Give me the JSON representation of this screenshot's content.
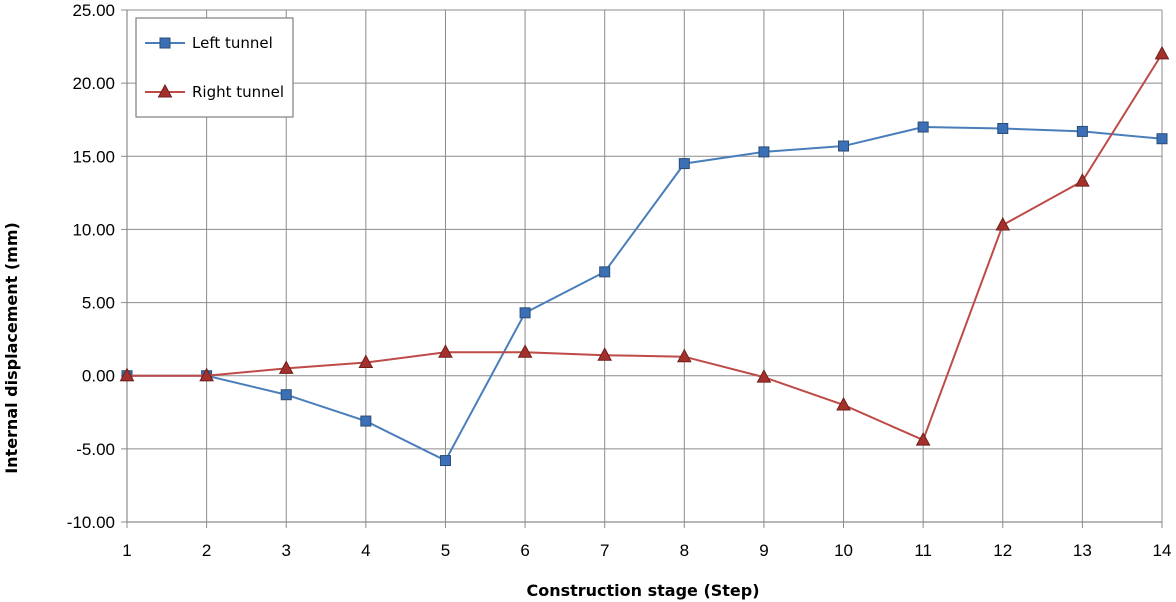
{
  "chart_data": {
    "type": "line",
    "xlabel": "Construction stage (Step)",
    "ylabel": "Internal displacement (mm)",
    "x": [
      1,
      2,
      3,
      4,
      5,
      6,
      7,
      8,
      9,
      10,
      11,
      12,
      13,
      14
    ],
    "ylim": [
      -10,
      25
    ],
    "y_ticks": [
      "-10.00",
      "-5.00",
      "0.00",
      "5.00",
      "10.00",
      "15.00",
      "20.00",
      "25.00"
    ],
    "x_ticks": [
      "1",
      "2",
      "3",
      "4",
      "5",
      "6",
      "7",
      "8",
      "9",
      "10",
      "11",
      "12",
      "13",
      "14"
    ],
    "grid": true,
    "legend_position": "top-left",
    "series": [
      {
        "name": "Left tunnel",
        "color": "#4a7ebb",
        "marker_fill": "#3b6fb6",
        "marker": "square",
        "values": [
          0.0,
          0.0,
          -1.3,
          -3.1,
          -5.8,
          4.3,
          7.1,
          14.5,
          15.3,
          15.7,
          17.0,
          16.9,
          16.7,
          16.2
        ]
      },
      {
        "name": "Right tunnel",
        "color": "#be4b48",
        "marker_fill": "#a4302c",
        "marker": "triangle",
        "values": [
          0.0,
          0.0,
          0.5,
          0.9,
          1.6,
          1.6,
          1.4,
          1.3,
          -0.1,
          -2.0,
          -4.4,
          10.3,
          13.3,
          22.0
        ]
      }
    ]
  }
}
